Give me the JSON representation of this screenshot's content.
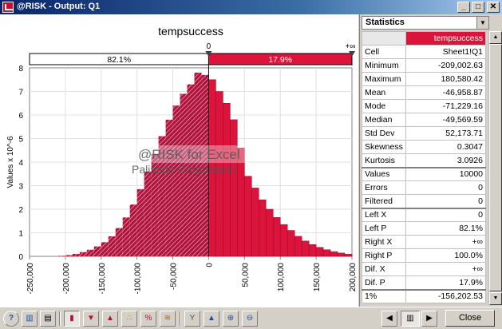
{
  "window": {
    "title": "@RISK - Output: Q1"
  },
  "chart_data": {
    "type": "bar",
    "title": "tempsuccess",
    "ylabel": "Values x 10^-6",
    "xlabel": "",
    "bin_width": 10000,
    "bin_start": -250000,
    "values": [
      0,
      0,
      0,
      0,
      0.02,
      0.05,
      0.1,
      0.18,
      0.28,
      0.42,
      0.6,
      0.85,
      1.2,
      1.65,
      2.2,
      2.85,
      3.6,
      4.35,
      5.1,
      5.8,
      6.4,
      6.9,
      7.3,
      7.8,
      7.7,
      7.5,
      7.0,
      6.5,
      5.8,
      4.6,
      3.4,
      2.9,
      2.4,
      2.0,
      1.65,
      1.35,
      1.1,
      0.85,
      0.65,
      0.5,
      0.38,
      0.28,
      0.2,
      0.14,
      0.09
    ],
    "xlim": [
      -250000,
      200000
    ],
    "ylim": [
      0,
      8
    ],
    "xticks": [
      "-250,000",
      "-200,000",
      "-150,000",
      "-100,000",
      "-50,000",
      "0",
      "50,000",
      "100,000",
      "150,000",
      "200,000"
    ],
    "xtick_values": [
      -250000,
      -200000,
      -150000,
      -100000,
      -50000,
      0,
      50000,
      100000,
      150000,
      200000
    ],
    "yticks": [
      "0",
      "1",
      "2",
      "3",
      "4",
      "5",
      "6",
      "7",
      "8"
    ],
    "grid": true,
    "delimiter_left_label": "0",
    "delimiter_right_label": "+∞",
    "delimiter_value": 0,
    "left_pct": "82.1%",
    "right_pct": "17.9%",
    "watermark_line1": "@RISK for Excel",
    "watermark_line2": "Palisade Corporation",
    "colors": {
      "bar": "#b0123c",
      "bar_dark": "#8c0a2e",
      "highlight": "#dc143c"
    }
  },
  "stats": {
    "header": "Statistics",
    "column_name": "tempsuccess",
    "rows": [
      {
        "label": "Cell",
        "value": "Sheet1!Q1"
      },
      {
        "label": "Minimum",
        "value": "-209,002.63"
      },
      {
        "label": "Maximum",
        "value": "180,580.42"
      },
      {
        "label": "Mean",
        "value": "-46,958.87"
      },
      {
        "label": "Mode",
        "value": "-71,229.16"
      },
      {
        "label": "Median",
        "value": "-49,569.59"
      },
      {
        "label": "Std Dev",
        "value": "52,173.71"
      },
      {
        "label": "Skewness",
        "value": "0.3047"
      },
      {
        "label": "Kurtosis",
        "value": "3.0926"
      },
      {
        "label": "Values",
        "value": "10000"
      },
      {
        "label": "Errors",
        "value": "0"
      },
      {
        "label": "Filtered",
        "value": "0"
      },
      {
        "label": "Left X",
        "value": "0"
      },
      {
        "label": "Left P",
        "value": "82.1%"
      },
      {
        "label": "Right X",
        "value": "+∞"
      },
      {
        "label": "Right P",
        "value": "100.0%"
      },
      {
        "label": "Dif. X",
        "value": "+∞"
      },
      {
        "label": "Dif. P",
        "value": "17.9%"
      },
      {
        "label": "1%",
        "value": "-156,202.53"
      }
    ]
  },
  "toolbar": {
    "close_label": "Close"
  }
}
